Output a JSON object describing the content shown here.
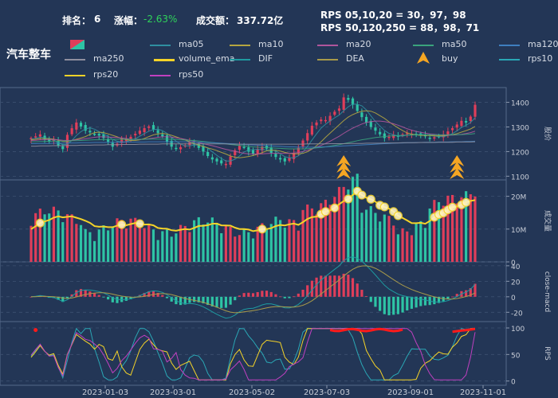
{
  "header": {
    "rank_label": "排名：",
    "rank_value": "6",
    "change_label": "涨幅：",
    "change_value": "-2.63%",
    "turnover_label": "成交额：",
    "turnover_value": "337.72亿",
    "rps_line1": "RPS 05,10,20 = 30，97，98",
    "rps_line2": "RPS 50,120,250 = 88，98，71"
  },
  "chart_title": "汽车整车",
  "legend": [
    {
      "name": "ma05",
      "color": "#2f8fa0"
    },
    {
      "name": "ma10",
      "color": "#b5a640"
    },
    {
      "name": "ma20",
      "color": "#b0559c"
    },
    {
      "name": "ma50",
      "color": "#3aa37d"
    },
    {
      "name": "ma120",
      "color": "#3f7fbf"
    },
    {
      "name": "ma250",
      "color": "#8f8f9f"
    },
    {
      "name": "volume_ema",
      "color": "#f5d328"
    },
    {
      "name": "DIF",
      "color": "#1e9aa0"
    },
    {
      "name": "DEA",
      "color": "#a89a4a"
    },
    {
      "name": "buy",
      "color": "#f5a623"
    },
    {
      "name": "rps10",
      "color": "#2aa7b5"
    },
    {
      "name": "rps20",
      "color": "#f5d328"
    },
    {
      "name": "rps50",
      "color": "#c040c0"
    }
  ],
  "colors": {
    "up": "#e03e5a",
    "down": "#2ec4a5",
    "background": "#233656",
    "buy": "#f5a623",
    "rps_high": "#ff1a1a"
  },
  "chart_data": {
    "type": "line",
    "x_ticks": [
      "2023-01-03",
      "2023-03-01",
      "2023-05-02",
      "2023-07-03",
      "2023-09-01",
      "2023-11-01"
    ],
    "panels": [
      {
        "name": "price",
        "ylabel": "股价",
        "y_ticks": [
          1100,
          1200,
          1300,
          1400
        ],
        "ylim": [
          1085,
          1460
        ],
        "close": [
          1255,
          1262,
          1270,
          1250,
          1240,
          1248,
          1225,
          1210,
          1268,
          1295,
          1318,
          1302,
          1285,
          1278,
          1270,
          1265,
          1255,
          1240,
          1220,
          1232,
          1248,
          1252,
          1260,
          1272,
          1285,
          1295,
          1302,
          1290,
          1275,
          1262,
          1240,
          1220,
          1212,
          1218,
          1225,
          1240,
          1230,
          1215,
          1200,
          1182,
          1168,
          1160,
          1152,
          1150,
          1180,
          1205,
          1225,
          1218,
          1200,
          1192,
          1210,
          1220,
          1212,
          1195,
          1178,
          1168,
          1160,
          1175,
          1195,
          1215,
          1245,
          1275,
          1305,
          1318,
          1330,
          1328,
          1345,
          1362,
          1375,
          1420,
          1410,
          1390,
          1365,
          1340,
          1318,
          1300,
          1285,
          1270,
          1255,
          1260,
          1268,
          1262,
          1270,
          1275,
          1272,
          1268,
          1270,
          1262,
          1255,
          1258,
          1262,
          1270,
          1282,
          1295,
          1310,
          1325,
          1318,
          1342,
          1390
        ],
        "series": [
          {
            "name": "ma05",
            "values": [
              1250,
              1254,
              1258,
              1256,
              1252,
              1247,
              1236,
              1228,
              1230,
              1245,
              1265,
              1281,
              1292,
              1296,
              1291,
              1281,
              1271,
              1262,
              1250,
              1242,
              1239,
              1240,
              1246,
              1252,
              1262,
              1273,
              1283,
              1289,
              1291,
              1285,
              1274,
              1258,
              1242,
              1230,
              1223,
              1223,
              1227,
              1226,
              1222,
              1214,
              1199,
              1185,
              1172,
              1162,
              1162,
              1169,
              1182,
              1198,
              1206,
              1208,
              1209,
              1208,
              1207,
              1206,
              1203,
              1191,
              1179,
              1175,
              1175,
              1183,
              1198,
              1221,
              1247,
              1272,
              1295,
              1311,
              1325,
              1337,
              1348,
              1366,
              1382,
              1393,
              1392,
              1386,
              1369,
              1345,
              1322,
              1304,
              1286,
              1274,
              1268,
              1263,
              1263,
              1267,
              1269,
              1269,
              1269,
              1269,
              1265,
              1263,
              1261,
              1261,
              1265,
              1273,
              1284,
              1298,
              1306,
              1318,
              1337
            ]
          },
          {
            "name": "ma10",
            "values": [
              1248,
              1250,
              1253,
              1253,
              1252,
              1251,
              1246,
              1241,
              1241,
              1245,
              1250,
              1255,
              1261,
              1270,
              1277,
              1279,
              1277,
              1272,
              1266,
              1260,
              1252,
              1248,
              1245,
              1245,
              1248,
              1253,
              1261,
              1268,
              1272,
              1274,
              1271,
              1266,
              1260,
              1253,
              1247,
              1240,
              1233,
              1226,
              1221,
              1215,
              1210,
              1204,
              1197,
              1190,
              1182,
              1177,
              1175,
              1177,
              1180,
              1184,
              1189,
              1196,
              1203,
              1206,
              1205,
              1202,
              1197,
              1193,
              1191,
              1191,
              1193,
              1199,
              1210,
              1224,
              1240,
              1258,
              1275,
              1292,
              1309,
              1326,
              1340,
              1350,
              1358,
              1364,
              1366,
              1364,
              1357,
              1346,
              1335,
              1321,
              1308,
              1296,
              1285,
              1276,
              1271,
              1268,
              1265,
              1266,
              1265,
              1264,
              1264,
              1264,
              1266,
              1269,
              1273,
              1279,
              1285,
              1292,
              1302
            ]
          },
          {
            "name": "ma20",
            "values": [
              1245,
              1246,
              1248,
              1248,
              1249,
              1249,
              1248,
              1246,
              1245,
              1246,
              1248,
              1250,
              1252,
              1255,
              1258,
              1260,
              1260,
              1259,
              1258,
              1257,
              1255,
              1253,
              1250,
              1249,
              1249,
              1250,
              1252,
              1255,
              1258,
              1260,
              1260,
              1259,
              1256,
              1253,
              1250,
              1246,
              1241,
              1236,
              1232,
              1228,
              1224,
              1219,
              1214,
              1209,
              1205,
              1201,
              1197,
              1193,
              1191,
              1190,
              1190,
              1191,
              1192,
              1193,
              1193,
              1193,
              1193,
              1193,
              1194,
              1196,
              1200,
              1205,
              1211,
              1218,
              1225,
              1233,
              1242,
              1252,
              1262,
              1274,
              1285,
              1295,
              1304,
              1312,
              1318,
              1322,
              1324,
              1324,
              1322,
              1318,
              1313,
              1307,
              1300,
              1293,
              1287,
              1282,
              1278,
              1275,
              1272,
              1270,
              1268,
              1267,
              1267,
              1267,
              1268,
              1270,
              1273,
              1277,
              1283
            ]
          },
          {
            "name": "ma50",
            "values": [
              1240,
              1240,
              1241,
              1241,
              1242,
              1242,
              1242,
              1243,
              1243,
              1244,
              1244,
              1245,
              1246,
              1247,
              1248,
              1248,
              1249,
              1249,
              1250,
              1250,
              1250,
              1250,
              1250,
              1250,
              1250,
              1250,
              1251,
              1251,
              1251,
              1251,
              1251,
              1250,
              1249,
              1248,
              1247,
              1246,
              1245,
              1243,
              1241,
              1239,
              1237,
              1235,
              1233,
              1231,
              1229,
              1227,
              1225,
              1223,
              1221,
              1219,
              1218,
              1217,
              1216,
              1215,
              1214,
              1213,
              1212,
              1211,
              1211,
              1211,
              1211,
              1212,
              1213,
              1215,
              1217,
              1219,
              1222,
              1225,
              1228,
              1232,
              1236,
              1240,
              1244,
              1248,
              1251,
              1254,
              1257,
              1259,
              1261,
              1263,
              1264,
              1265,
              1266,
              1267,
              1267,
              1268,
              1268,
              1268,
              1268,
              1268,
              1268,
              1268,
              1268,
              1268,
              1269,
              1269,
              1270,
              1271,
              1273
            ]
          },
          {
            "name": "ma120",
            "values": [
              1232,
              1232,
              1233,
              1233,
              1233,
              1234,
              1234,
              1234,
              1235,
              1235,
              1235,
              1236,
              1236,
              1236,
              1237,
              1237,
              1237,
              1238,
              1238,
              1238,
              1238,
              1239,
              1239,
              1239,
              1239,
              1239,
              1240,
              1240,
              1240,
              1240,
              1240,
              1240,
              1240,
              1240,
              1240,
              1239,
              1239,
              1238,
              1238,
              1237,
              1236,
              1235,
              1234,
              1233,
              1232,
              1231,
              1230,
              1229,
              1228,
              1227,
              1226,
              1225,
              1224,
              1223,
              1222,
              1221,
              1220,
              1219,
              1219,
              1218,
              1218,
              1218,
              1218,
              1218,
              1219,
              1219,
              1220,
              1221,
              1222,
              1223,
              1224,
              1225,
              1226,
              1227,
              1228,
              1229,
              1230,
              1231,
              1232,
              1233,
              1234,
              1235,
              1235,
              1236,
              1236,
              1237,
              1237,
              1238,
              1238,
              1238,
              1239,
              1239,
              1239,
              1240,
              1240,
              1240,
              1241,
              1241,
              1242
            ]
          },
          {
            "name": "ma250",
            "values": [
              1222,
              1222,
              1223,
              1223,
              1223,
              1224,
              1224,
              1224,
              1225,
              1225,
              1225,
              1226,
              1226,
              1226,
              1227,
              1227,
              1227,
              1228,
              1228,
              1228,
              1229,
              1229,
              1229,
              1229,
              1230,
              1230,
              1230,
              1230,
              1230,
              1231,
              1231,
              1231,
              1231,
              1231,
              1231,
              1231,
              1231,
              1231,
              1231,
              1231,
              1231,
              1231,
              1231,
              1231,
              1230,
              1230,
              1230,
              1230,
              1230,
              1230,
              1230,
              1230,
              1230,
              1230,
              1230,
              1230,
              1230,
              1230,
              1230,
              1230,
              1230,
              1231,
              1231,
              1231,
              1231,
              1231,
              1232,
              1232,
              1232,
              1232,
              1233,
              1233,
              1233,
              1233,
              1234,
              1234,
              1234,
              1234,
              1235,
              1235,
              1235,
              1235,
              1236,
              1236,
              1236,
              1236,
              1237,
              1237,
              1237,
              1237,
              1238,
              1238,
              1238,
              1238,
              1239,
              1239,
              1239,
              1239,
              1240
            ]
          }
        ],
        "buy_signals": [
          {
            "date_index": 69,
            "count": 3
          },
          {
            "date_index": 94,
            "count": 3
          }
        ]
      },
      {
        "name": "volume",
        "ylabel": "成交量",
        "y_ticks": [
          "0",
          "10M",
          "20M"
        ],
        "ylim": [
          0,
          25
        ],
        "volume_ema_markers": 24
      },
      {
        "name": "macd",
        "ylabel": "close-macd",
        "y_ticks": [
          -20,
          0,
          20,
          40
        ],
        "ylim": [
          -32,
          45
        ]
      },
      {
        "name": "rps",
        "ylabel": "RPS",
        "y_ticks": [
          0,
          50,
          100
        ],
        "ylim": [
          -8,
          112
        ]
      }
    ]
  }
}
